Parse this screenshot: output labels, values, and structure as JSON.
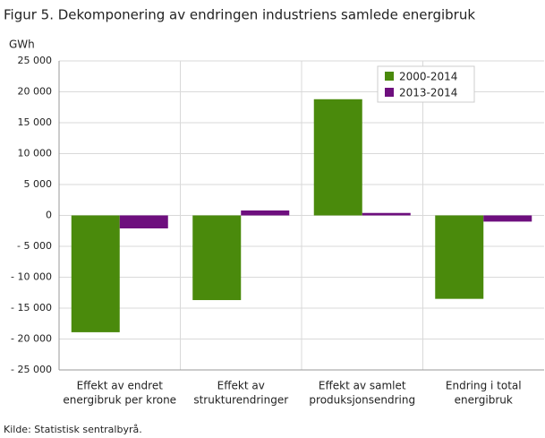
{
  "chart_data": {
    "type": "bar",
    "title": "Figur 5. Dekomponering av endringen industriens samlede energibruk",
    "y_label": "GWh",
    "source": "Kilde: Statistisk sentralbyrå.",
    "categories": [
      [
        "Effekt av endret",
        "energibruk per krone"
      ],
      [
        "Effekt av",
        "strukturendringer"
      ],
      [
        "Effekt av samlet",
        "produksjonsendring"
      ],
      [
        "Endring i total",
        "energibruk"
      ]
    ],
    "series": [
      {
        "name": "2000-2014",
        "color": "#4a8a0c",
        "values": [
          -18900,
          -13700,
          18800,
          -13500
        ]
      },
      {
        "name": "2013-2014",
        "color": "#6e0f7e",
        "values": [
          -2100,
          800,
          400,
          -1000
        ]
      }
    ],
    "ylim": [
      -25000,
      25000
    ],
    "yticks": [
      {
        "value": -25000,
        "label": "- 25 000"
      },
      {
        "value": -20000,
        "label": "- 20 000"
      },
      {
        "value": -15000,
        "label": "- 15 000"
      },
      {
        "value": -10000,
        "label": "- 10 000"
      },
      {
        "value": -5000,
        "label": "- 5 000"
      },
      0,
      {
        "value": 5000,
        "label": "5 000"
      },
      {
        "value": 10000,
        "label": "10 000"
      },
      {
        "value": 15000,
        "label": "15 000"
      },
      {
        "value": 20000,
        "label": "20 000"
      },
      {
        "value": 25000,
        "label": "25 000"
      }
    ],
    "grid": true,
    "legend": "upper right"
  }
}
